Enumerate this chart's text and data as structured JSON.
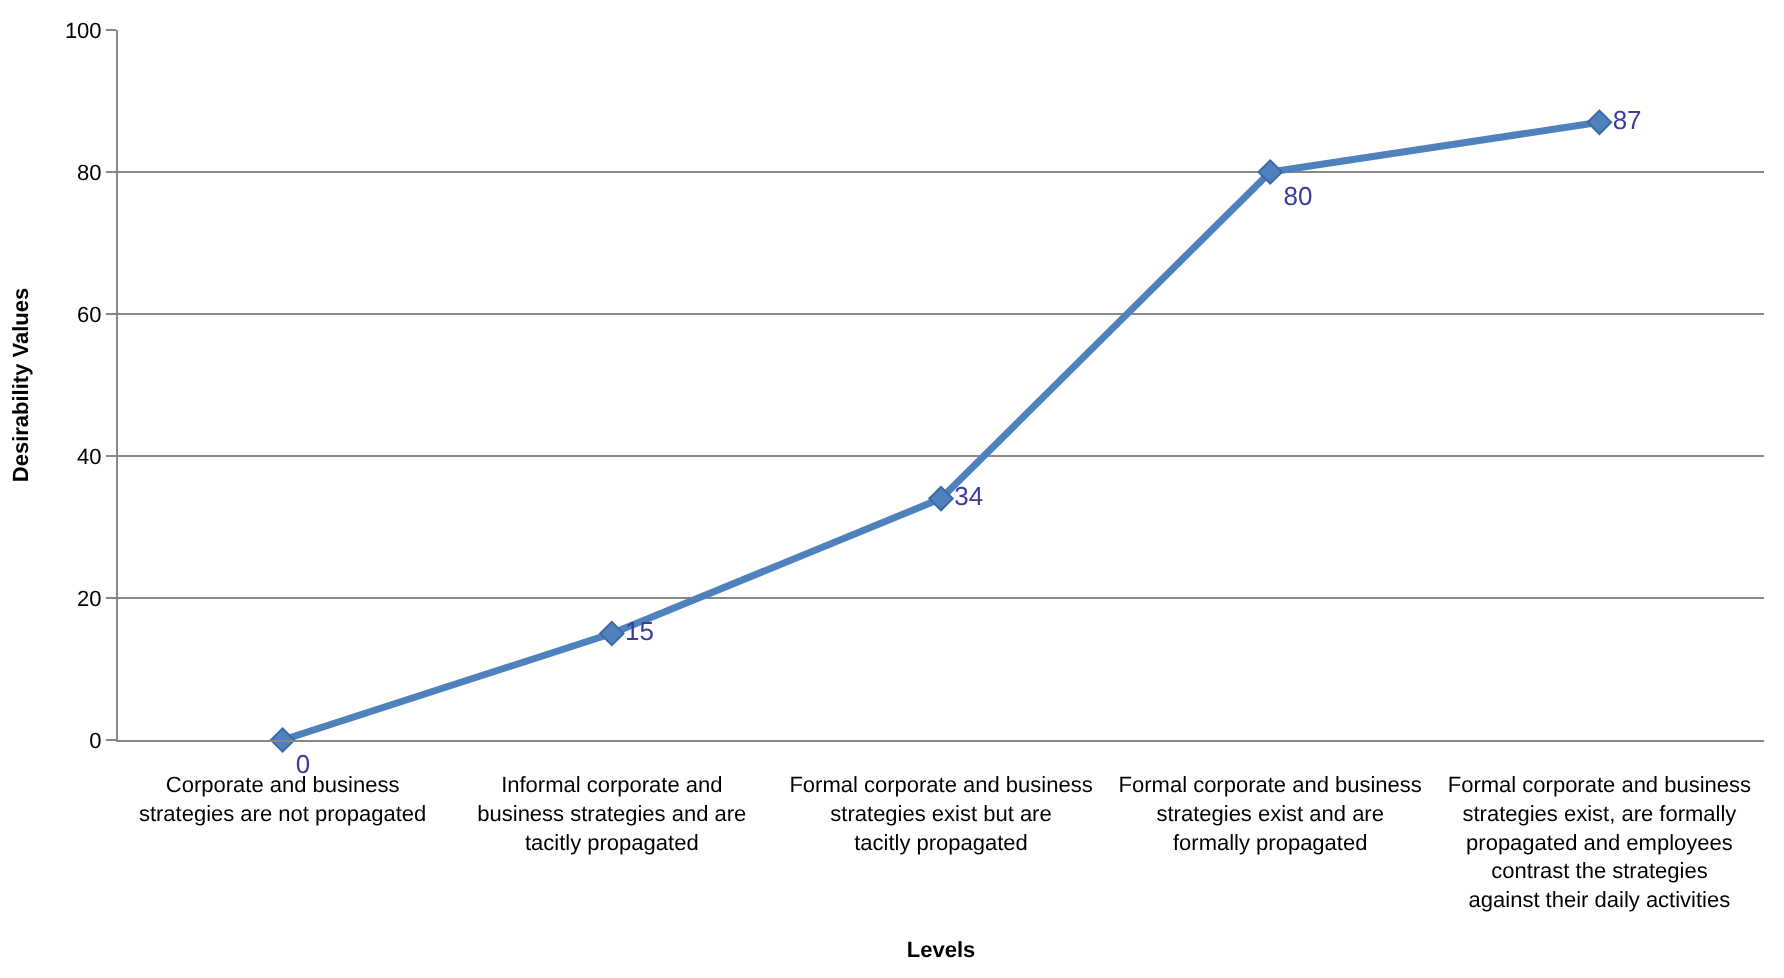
{
  "chart_data": {
    "type": "line",
    "xlabel": "Levels",
    "ylabel": "Desirability Values",
    "categories": [
      "Corporate and business strategies are not propagated",
      "Informal corporate and business strategies and are tacitly propagated",
      "Formal corporate and business strategies exist but are tacitly propagated",
      "Formal corporate and business strategies exist and are formally propagated",
      "Formal corporate and business strategies exist, are formally propagated and employees contrast the strategies against their daily activities"
    ],
    "series": [
      {
        "color": "#4f81bd",
        "values": [
          0,
          15,
          34,
          80,
          87
        ]
      }
    ],
    "ylim": [
      0,
      100
    ],
    "yticks": [
      0,
      20,
      40,
      60,
      80,
      100
    ],
    "grid": "y",
    "marker": "diamond",
    "line_style": "solid",
    "data_labels": true,
    "legend": false
  }
}
